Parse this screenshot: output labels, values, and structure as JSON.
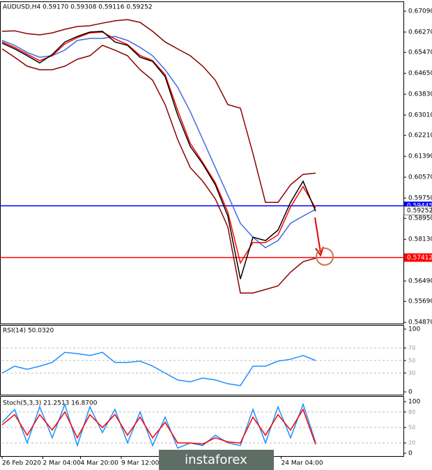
{
  "chart_data": [
    {
      "type": "line",
      "title": "AUDUSD,H4  0.59170 0.59308 0.59116 0.59252",
      "x": [
        0,
        4,
        8,
        12,
        16,
        20,
        24,
        28,
        32,
        36,
        40,
        44,
        48,
        52,
        56,
        60,
        64,
        68,
        72,
        76,
        80,
        84,
        88,
        92,
        96,
        100
      ],
      "xlim": [
        0,
        128
      ],
      "ylim": [
        0.5482,
        0.6742
      ],
      "yticks": [
        {
          "value": 0.6709,
          "label": "0.67090"
        },
        {
          "value": 0.6627,
          "label": "0.66270"
        },
        {
          "value": 0.6547,
          "label": "0.65470"
        },
        {
          "value": 0.6465,
          "label": "0.64650"
        },
        {
          "value": 0.6383,
          "label": "0.63830"
        },
        {
          "value": 0.6301,
          "label": "0.63010"
        },
        {
          "value": 0.6221,
          "label": "0.62210"
        },
        {
          "value": 0.6139,
          "label": "0.61390"
        },
        {
          "value": 0.6057,
          "label": "0.60570"
        },
        {
          "value": 0.5975,
          "label": "0.59750"
        },
        {
          "value": 0.5895,
          "label": "0.58950"
        },
        {
          "value": 0.5813,
          "label": "0.58130"
        },
        {
          "value": 0.5731,
          "label": "0.57310"
        },
        {
          "value": 0.5649,
          "label": "0.56490"
        },
        {
          "value": 0.5569,
          "label": "0.55690"
        },
        {
          "value": 0.5487,
          "label": "0.54870"
        }
      ],
      "series": [
        {
          "color": "#8b0000",
          "values": [
            0.663,
            0.6632,
            0.6621,
            0.6616,
            0.6624,
            0.6638,
            0.6649,
            0.6652,
            0.6662,
            0.6671,
            0.6676,
            0.6665,
            0.663,
            0.6588,
            0.6561,
            0.6534,
            0.6493,
            0.6438,
            0.6342,
            0.6328,
            0.615,
            0.5958,
            0.5958,
            0.6027,
            0.6068,
            0.6073
          ]
        },
        {
          "color": "#8b0000",
          "values": [
            0.6561,
            0.6528,
            0.6493,
            0.6479,
            0.6479,
            0.6493,
            0.652,
            0.6534,
            0.6575,
            0.6556,
            0.6534,
            0.6479,
            0.6438,
            0.6342,
            0.6205,
            0.6095,
            0.6041,
            0.5972,
            0.5862,
            0.5602,
            0.5602,
            0.5616,
            0.563,
            0.5684,
            0.5725,
            0.5739
          ]
        },
        {
          "color": "#4169e1",
          "values": [
            0.6594,
            0.6575,
            0.6547,
            0.6528,
            0.6534,
            0.6556,
            0.6594,
            0.6602,
            0.6602,
            0.661,
            0.6594,
            0.6567,
            0.6534,
            0.6479,
            0.641,
            0.6315,
            0.6205,
            0.6095,
            0.5986,
            0.5876,
            0.5821,
            0.578,
            0.5808,
            0.5876,
            0.5904,
            0.5931
          ]
        },
        {
          "color": "#ff0000",
          "values": [
            0.6588,
            0.6567,
            0.654,
            0.6515,
            0.6534,
            0.658,
            0.6605,
            0.6624,
            0.6627,
            0.66,
            0.6578,
            0.6535,
            0.6515,
            0.646,
            0.632,
            0.619,
            0.6115,
            0.6035,
            0.592,
            0.572,
            0.58,
            0.58,
            0.583,
            0.594,
            0.602,
            0.5935
          ]
        },
        {
          "color": "#000000",
          "values": [
            0.6583,
            0.6561,
            0.6534,
            0.6506,
            0.6539,
            0.6588,
            0.661,
            0.6627,
            0.663,
            0.6588,
            0.6575,
            0.6528,
            0.6512,
            0.6452,
            0.6301,
            0.6178,
            0.6109,
            0.6027,
            0.5904,
            0.5657,
            0.5821,
            0.5808,
            0.5849,
            0.5958,
            0.6041,
            0.5923
          ]
        }
      ],
      "hlines": [
        {
          "value": 0.59445,
          "label": "0.59445",
          "color": "#0000ff"
        },
        {
          "value": 0.57412,
          "label": "0.57412",
          "color": "#ff0000"
        }
      ],
      "last_price": 0.59252
    },
    {
      "type": "line",
      "title": "RSI(14) 50.0320",
      "x": [
        0,
        4,
        8,
        12,
        16,
        20,
        24,
        28,
        32,
        36,
        40,
        44,
        48,
        52,
        56,
        60,
        64,
        68,
        72,
        76,
        80,
        84,
        88,
        92,
        96,
        100
      ],
      "xlim": [
        0,
        128
      ],
      "ylim": [
        0,
        100
      ],
      "yticks": [
        0,
        30,
        50,
        70,
        100
      ],
      "grid": true,
      "series": [
        {
          "color": "#1e90ff",
          "values": [
            30,
            41,
            36,
            41,
            47,
            63,
            61,
            58,
            63,
            47,
            47,
            49,
            41,
            30,
            19,
            16,
            22,
            19,
            13,
            10,
            41,
            41,
            49,
            52,
            58,
            50
          ]
        }
      ]
    },
    {
      "type": "line",
      "title": "Stoch(5,3,3) 21.2513 16.8700",
      "x": [
        0,
        4,
        8,
        12,
        16,
        20,
        24,
        28,
        32,
        36,
        40,
        44,
        48,
        52,
        56,
        60,
        64,
        68,
        72,
        76,
        80,
        84,
        88,
        92,
        96,
        100
      ],
      "xlim": [
        0,
        128
      ],
      "ylim": [
        0,
        100
      ],
      "yticks": [
        0,
        20,
        50,
        80,
        100
      ],
      "grid": true,
      "xticks": [
        {
          "value": 0,
          "label": "26 Feb 2020"
        },
        {
          "value": 13,
          "label": "2 Mar 04:00"
        },
        {
          "value": 25,
          "label": "4 Mar 20:00"
        },
        {
          "value": 38,
          "label": "9 Mar 12:00"
        },
        {
          "value": 89,
          "label": "24 Mar 04:00"
        }
      ],
      "series": [
        {
          "color": "#1e90ff",
          "values": [
            60,
            85,
            20,
            90,
            30,
            95,
            15,
            90,
            40,
            85,
            20,
            80,
            15,
            70,
            10,
            20,
            15,
            35,
            20,
            15,
            85,
            20,
            90,
            30,
            95,
            21
          ]
        },
        {
          "color": "#ff0000",
          "values": [
            55,
            75,
            35,
            75,
            45,
            80,
            30,
            75,
            50,
            75,
            35,
            70,
            30,
            60,
            20,
            20,
            18,
            30,
            22,
            20,
            70,
            35,
            75,
            45,
            85,
            17
          ]
        }
      ]
    }
  ],
  "watermark": "instaforex"
}
